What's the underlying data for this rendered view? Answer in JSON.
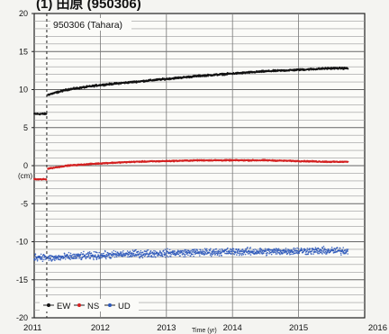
{
  "header_text": "(1) 田原 (950306)",
  "chart_data": {
    "type": "scatter",
    "station_label": "950306 (Tahara)",
    "ylabel": "(cm)",
    "xlabel": "Time (yr)",
    "xlim": [
      2011,
      2016
    ],
    "ylim": [
      -20,
      20
    ],
    "x_ticks": [
      "2011",
      "2012",
      "2013",
      "2014",
      "2015",
      "2016"
    ],
    "y_ticks": [
      "20",
      "15",
      "10",
      "5",
      "0",
      "-5",
      "-10",
      "-15",
      "-20"
    ],
    "grid": true,
    "event_marker_x": 2011.19,
    "legend_position": "bottom-left",
    "series": [
      {
        "name": "EW",
        "color": "#111111",
        "x": [
          2011.0,
          2011.19,
          2011.2,
          2011.5,
          2012.0,
          2012.5,
          2013.0,
          2013.5,
          2014.0,
          2014.5,
          2015.0,
          2015.5,
          2015.75
        ],
        "y": [
          6.8,
          6.8,
          9.3,
          10.0,
          10.6,
          11.0,
          11.4,
          11.8,
          12.1,
          12.4,
          12.6,
          12.8,
          12.8
        ]
      },
      {
        "name": "NS",
        "color": "#d42020",
        "x": [
          2011.0,
          2011.19,
          2011.2,
          2011.5,
          2012.0,
          2012.5,
          2013.0,
          2013.5,
          2014.0,
          2014.5,
          2015.0,
          2015.5,
          2015.75
        ],
        "y": [
          -1.8,
          -1.8,
          -0.4,
          0.0,
          0.3,
          0.5,
          0.6,
          0.7,
          0.7,
          0.7,
          0.6,
          0.5,
          0.5
        ]
      },
      {
        "name": "UD",
        "color": "#2a56b8",
        "x": [
          2011.0,
          2011.19,
          2011.2,
          2011.5,
          2012.0,
          2012.5,
          2013.0,
          2013.5,
          2014.0,
          2014.5,
          2015.0,
          2015.5,
          2015.75
        ],
        "y": [
          -12.0,
          -12.0,
          -12.2,
          -12.0,
          -11.8,
          -11.6,
          -11.5,
          -11.4,
          -11.3,
          -11.3,
          -11.2,
          -11.2,
          -11.2
        ]
      }
    ]
  }
}
